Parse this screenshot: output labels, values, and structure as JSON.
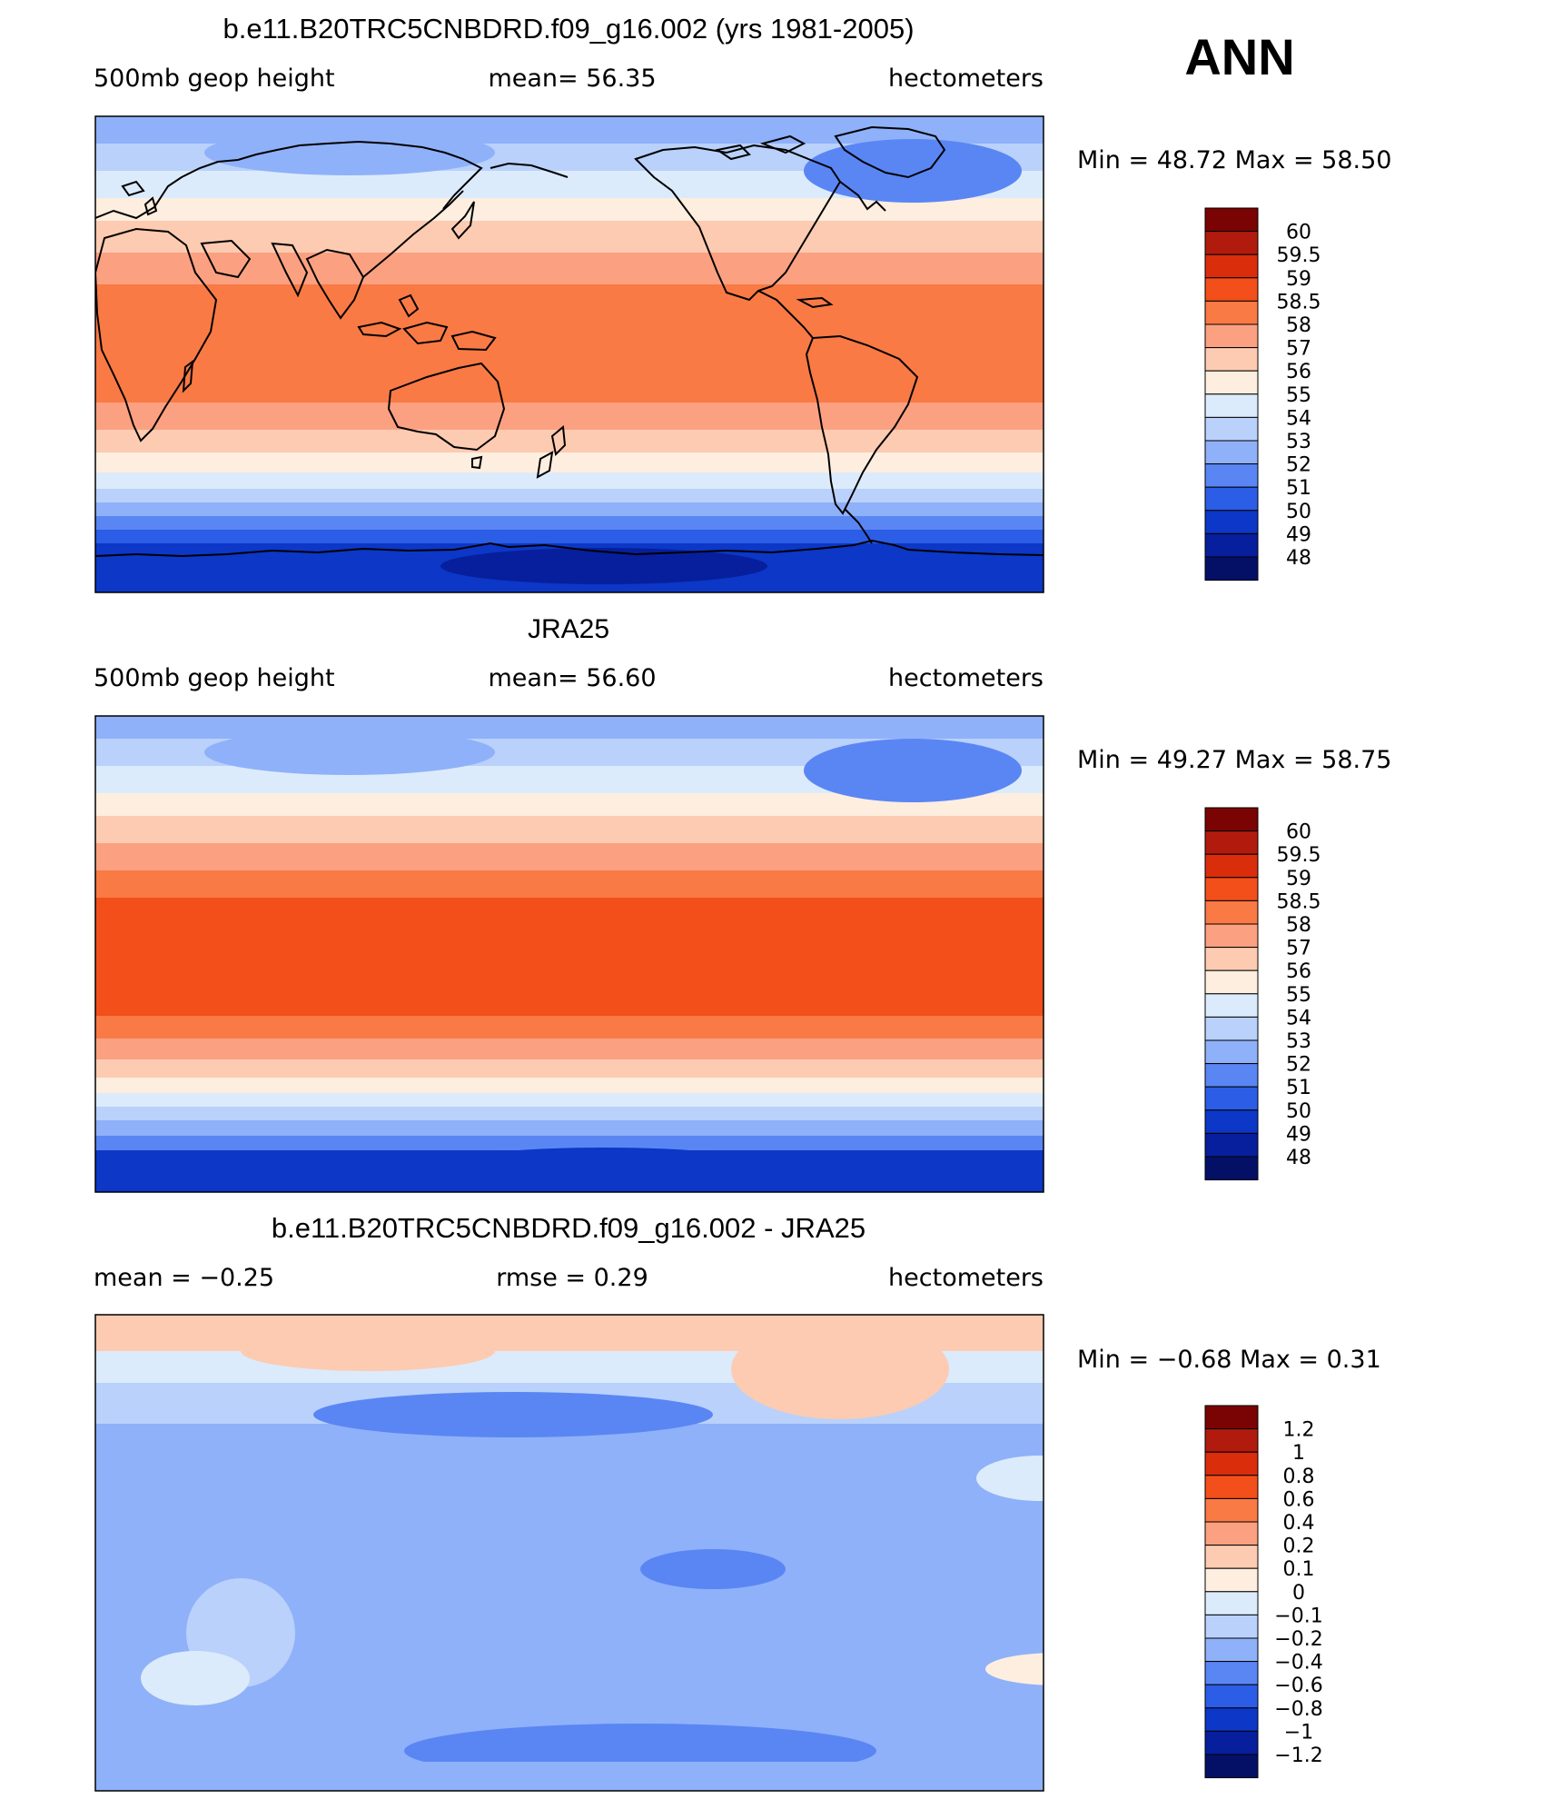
{
  "header": {
    "season": "ANN"
  },
  "panels": [
    {
      "id": "model",
      "title": "b.e11.B20TRC5CNBDRD.f09_g16.002 (yrs 1981-2005)",
      "left_label": "500mb  geop  height",
      "center_label": "mean=   56.35",
      "right_label": "hectometers",
      "minmax_label": "Min  =    48.72  Max  =    58.50",
      "colorbar_levels": [
        "60",
        "59.5",
        "59",
        "58.5",
        "58",
        "57",
        "56",
        "55",
        "54",
        "53",
        "52",
        "51",
        "50",
        "49",
        "48"
      ]
    },
    {
      "id": "obs",
      "title": "JRA25",
      "left_label": "500mb  geop  height",
      "center_label": "mean=   56.60",
      "right_label": "hectometers",
      "minmax_label": "Min  =    49.27  Max  =    58.75",
      "colorbar_levels": [
        "60",
        "59.5",
        "59",
        "58.5",
        "58",
        "57",
        "56",
        "55",
        "54",
        "53",
        "52",
        "51",
        "50",
        "49",
        "48"
      ]
    },
    {
      "id": "diff",
      "title": "b.e11.B20TRC5CNBDRD.f09_g16.002 - JRA25",
      "left_label": "mean  =    −0.25",
      "center_label": "rmse  =     0.29",
      "right_label": "hectometers",
      "minmax_label": "Min  =   −0.68  Max  =     0.31",
      "colorbar_levels": [
        "1.2",
        "1",
        "0.8",
        "0.6",
        "0.4",
        "0.2",
        "0.1",
        "0",
        "−0.1",
        "−0.2",
        "−0.4",
        "−0.6",
        "−0.8",
        "−1",
        "−1.2"
      ]
    }
  ],
  "colors": {
    "palette": [
      "#7a0403",
      "#b11b0e",
      "#d92d0c",
      "#f24f1b",
      "#f97a45",
      "#fba181",
      "#fdcbb1",
      "#fdeedf",
      "#dcebfb",
      "#b9d1fb",
      "#8fb1f9",
      "#5a86f4",
      "#2b5de6",
      "#0c37c7",
      "#071f9c",
      "#041066"
    ],
    "land_outline": "#000000"
  }
}
